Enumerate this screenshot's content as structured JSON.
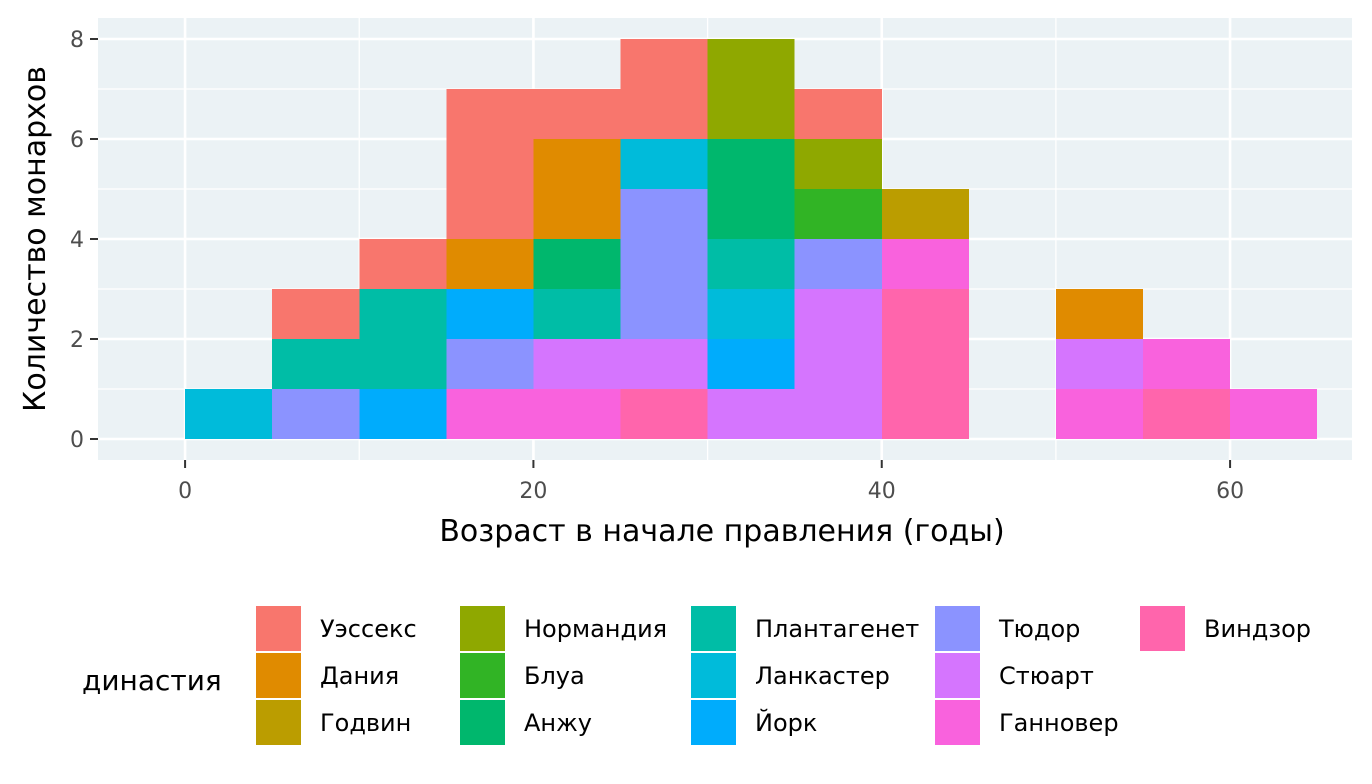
{
  "chart_data": {
    "type": "bar",
    "subtype": "stacked-histogram",
    "title": "",
    "xlabel": "Возраст в начале правления (годы)",
    "ylabel": "Количество монархов",
    "xlim": [
      -5,
      67
    ],
    "ylim": [
      0,
      8
    ],
    "x_ticks": [
      0,
      20,
      40,
      60
    ],
    "y_ticks": [
      0,
      2,
      4,
      6,
      8
    ],
    "bin_width": 5,
    "grid": true,
    "legend_position": "bottom",
    "legend_title": "династия",
    "series": [
      {
        "name": "Уэссекс",
        "color": "#F8766D",
        "bins": [
          {
            "x0": 5,
            "count": 1
          },
          {
            "x0": 10,
            "count": 1
          },
          {
            "x0": 15,
            "count": 3
          },
          {
            "x0": 20,
            "count": 1
          },
          {
            "x0": 25,
            "count": 2
          },
          {
            "x0": 35,
            "count": 1
          }
        ]
      },
      {
        "name": "Дания",
        "color": "#E08B00",
        "bins": [
          {
            "x0": 15,
            "count": 1
          },
          {
            "x0": 20,
            "count": 2
          },
          {
            "x0": 50,
            "count": 1
          }
        ]
      },
      {
        "name": "Годвин",
        "color": "#BB9D00",
        "bins": [
          {
            "x0": 40,
            "count": 1
          }
        ]
      },
      {
        "name": "Нормандия",
        "color": "#8FA800",
        "bins": [
          {
            "x0": 30,
            "count": 2
          },
          {
            "x0": 35,
            "count": 1
          }
        ]
      },
      {
        "name": "Блуа",
        "color": "#31B425",
        "bins": [
          {
            "x0": 35,
            "count": 1
          }
        ]
      },
      {
        "name": "Анжу",
        "color": "#00B76D",
        "bins": [
          {
            "x0": 20,
            "count": 1
          },
          {
            "x0": 30,
            "count": 2
          }
        ]
      },
      {
        "name": "Плантагенет",
        "color": "#00BDA6",
        "bins": [
          {
            "x0": 5,
            "count": 1
          },
          {
            "x0": 10,
            "count": 2
          },
          {
            "x0": 20,
            "count": 1
          },
          {
            "x0": 30,
            "count": 1
          }
        ]
      },
      {
        "name": "Ланкастер",
        "color": "#00BBDA",
        "bins": [
          {
            "x0": 0,
            "count": 1
          },
          {
            "x0": 25,
            "count": 1
          },
          {
            "x0": 30,
            "count": 1
          }
        ]
      },
      {
        "name": "Йорк",
        "color": "#00ACFC",
        "bins": [
          {
            "x0": 10,
            "count": 1
          },
          {
            "x0": 15,
            "count": 1
          },
          {
            "x0": 30,
            "count": 1
          }
        ]
      },
      {
        "name": "Тюдор",
        "color": "#8B93FF",
        "bins": [
          {
            "x0": 5,
            "count": 1
          },
          {
            "x0": 15,
            "count": 1
          },
          {
            "x0": 25,
            "count": 3
          },
          {
            "x0": 35,
            "count": 1
          }
        ]
      },
      {
        "name": "Стюарт",
        "color": "#D575FE",
        "bins": [
          {
            "x0": 20,
            "count": 1
          },
          {
            "x0": 25,
            "count": 1
          },
          {
            "x0": 30,
            "count": 1
          },
          {
            "x0": 35,
            "count": 3
          },
          {
            "x0": 50,
            "count": 1
          }
        ]
      },
      {
        "name": "Ганновер",
        "color": "#F962DD",
        "bins": [
          {
            "x0": 15,
            "count": 1
          },
          {
            "x0": 20,
            "count": 1
          },
          {
            "x0": 40,
            "count": 1
          },
          {
            "x0": 50,
            "count": 1
          },
          {
            "x0": 55,
            "count": 1
          },
          {
            "x0": 60,
            "count": 1
          }
        ]
      },
      {
        "name": "Виндзор",
        "color": "#FF65AC",
        "bins": [
          {
            "x0": 25,
            "count": 1
          },
          {
            "x0": 40,
            "count": 3
          },
          {
            "x0": 55,
            "count": 1
          }
        ]
      }
    ]
  }
}
